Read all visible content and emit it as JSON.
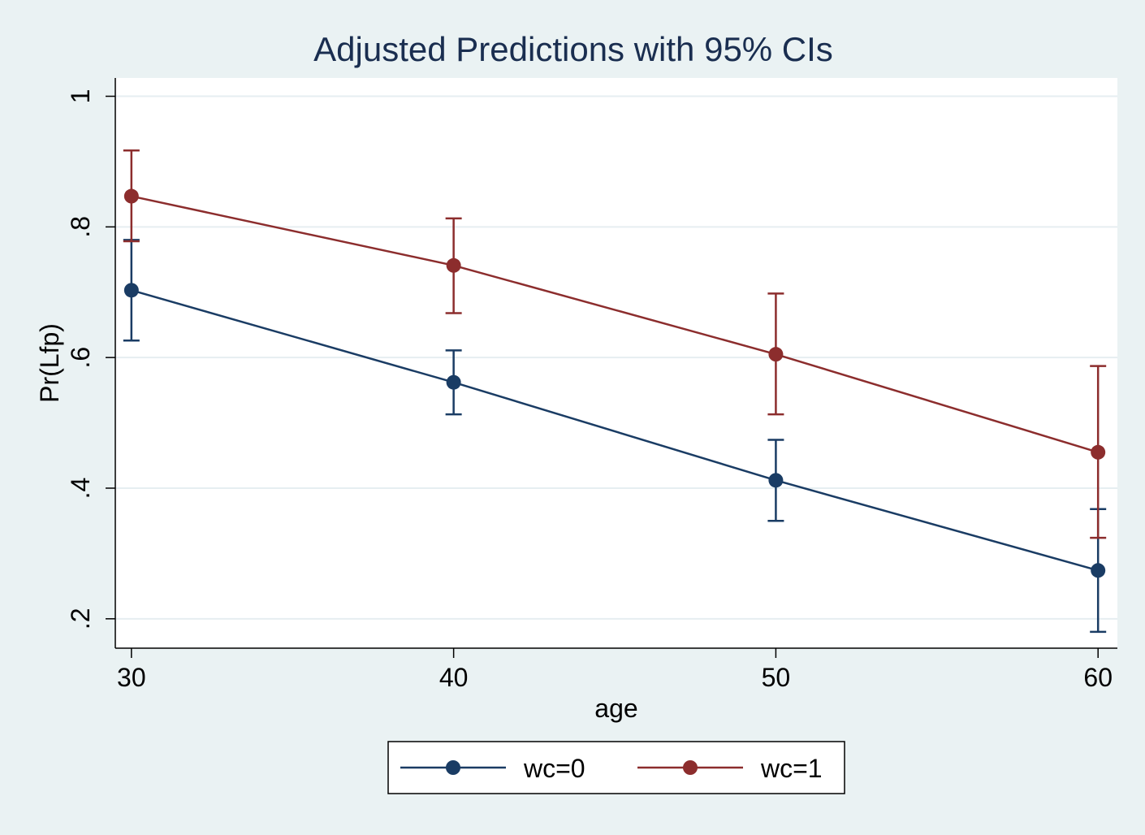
{
  "colors": {
    "background": "#eaf2f3",
    "plot_background": "#ffffff",
    "grid": "#e6eef1",
    "axis": "#000000",
    "title": "#1a2e50"
  },
  "chart_data": {
    "type": "line",
    "title": "Adjusted Predictions with 95% CIs",
    "xlabel": "age",
    "ylabel": "Pr(Lfp)",
    "x": [
      30,
      40,
      50,
      60
    ],
    "xticks": [
      30,
      40,
      50,
      60
    ],
    "xtick_labels": [
      "30",
      "40",
      "50",
      "60"
    ],
    "yticks": [
      0.2,
      0.4,
      0.6,
      0.8,
      1
    ],
    "ytick_labels": [
      ".2",
      ".4",
      ".6",
      ".8",
      "1"
    ],
    "xlim": [
      29.5,
      60.6
    ],
    "ylim": [
      0.155,
      1.028
    ],
    "grid": true,
    "legend_position": "bottom-center",
    "series": [
      {
        "name": "wc=0",
        "color": "#1a3c64",
        "values": [
          0.703,
          0.562,
          0.412,
          0.274
        ],
        "ci_low": [
          0.626,
          0.513,
          0.35,
          0.18
        ],
        "ci_high": [
          0.78,
          0.611,
          0.474,
          0.368
        ]
      },
      {
        "name": "wc=1",
        "color": "#8c2d2d",
        "values": [
          0.847,
          0.741,
          0.605,
          0.455
        ],
        "ci_low": [
          0.778,
          0.668,
          0.513,
          0.324
        ],
        "ci_high": [
          0.917,
          0.813,
          0.698,
          0.587
        ]
      }
    ]
  }
}
